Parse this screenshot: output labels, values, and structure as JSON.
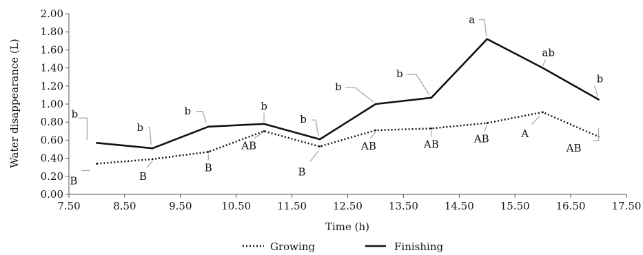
{
  "chart_data": {
    "type": "line",
    "xlabel": "Time (h)",
    "ylabel": "Water disappearance (L)",
    "xlim": [
      7.5,
      17.5
    ],
    "ylim": [
      0,
      2
    ],
    "x_ticks": [
      "7.50",
      "8.50",
      "9.50",
      "10.50",
      "11.50",
      "12.50",
      "13.50",
      "14.50",
      "15.50",
      "16.50",
      "17.50"
    ],
    "y_ticks": [
      "0.00",
      "0.20",
      "0.40",
      "0.60",
      "0.80",
      "1.00",
      "1.20",
      "1.40",
      "1.60",
      "1.80",
      "2.00"
    ],
    "grid": false,
    "legend_position": "bottom",
    "x": [
      8,
      9,
      10,
      11,
      12,
      13,
      14,
      15,
      16,
      17
    ],
    "series": [
      {
        "name": "Growing",
        "style": "dotted",
        "color": "#111111",
        "values": [
          0.34,
          0.39,
          0.47,
          0.7,
          0.53,
          0.71,
          0.73,
          0.79,
          0.91,
          0.64
        ],
        "labels": [
          "B",
          "B",
          "B",
          "AB",
          "B",
          "AB",
          "AB",
          "AB",
          "A",
          "AB"
        ]
      },
      {
        "name": "Finishing",
        "style": "solid",
        "color": "#111111",
        "values": [
          0.57,
          0.51,
          0.75,
          0.78,
          0.61,
          1.0,
          1.07,
          1.72,
          1.4,
          1.05
        ],
        "labels": [
          "b",
          "b",
          "b",
          "b",
          "b",
          "b",
          "b",
          "a",
          "ab",
          "b"
        ]
      }
    ]
  }
}
